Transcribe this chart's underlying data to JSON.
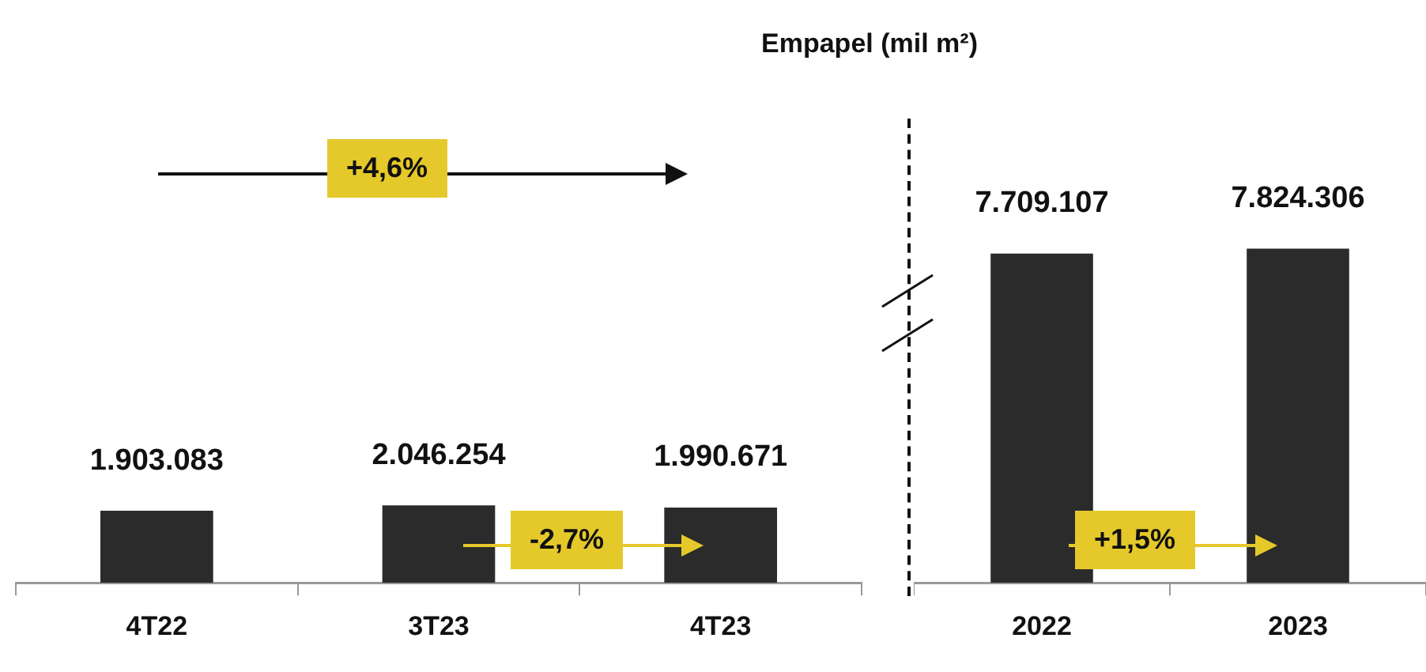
{
  "chart_data": [
    {
      "type": "bar",
      "title": "Empapel (mil m²)",
      "categories": [
        "4T22",
        "3T23",
        "4T23"
      ],
      "values": [
        1903083,
        2046254,
        1990671
      ],
      "value_labels": [
        "1.903.083",
        "2.046.254",
        "1.990.671"
      ],
      "color": "#2b2b2b",
      "annotations": [
        "+4,6%",
        "-2,7%"
      ]
    },
    {
      "type": "bar",
      "categories": [
        "2022",
        "2023"
      ],
      "values": [
        7709107,
        7824306
      ],
      "value_labels": [
        "7.709.107",
        "7.824.306"
      ],
      "color": "#2b2b2b",
      "annotations": [
        "+1,5%"
      ]
    }
  ]
}
